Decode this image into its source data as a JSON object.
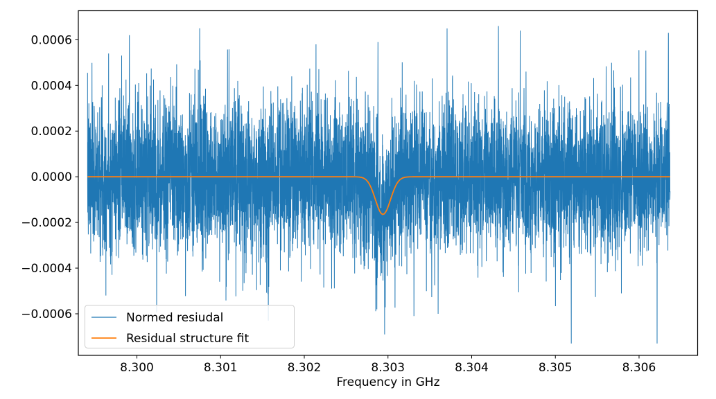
{
  "chart_data": {
    "type": "line",
    "title": "",
    "xlabel": "Frequency in GHz",
    "ylabel": "",
    "grid": false,
    "background": "#ffffff",
    "spine_color": "#000000",
    "legend_position": "lower left",
    "xlim": [
      8.2993,
      8.3067
    ],
    "ylim": [
      -0.000782,
      0.000727
    ],
    "xticks": [
      {
        "v": 8.3,
        "label": "8.300"
      },
      {
        "v": 8.301,
        "label": "8.301"
      },
      {
        "v": 8.302,
        "label": "8.302"
      },
      {
        "v": 8.303,
        "label": "8.303"
      },
      {
        "v": 8.304,
        "label": "8.304"
      },
      {
        "v": 8.305,
        "label": "8.305"
      },
      {
        "v": 8.306,
        "label": "8.306"
      }
    ],
    "yticks": [
      {
        "v": 0.0006,
        "label": "0.0006"
      },
      {
        "v": 0.0004,
        "label": "0.0004"
      },
      {
        "v": 0.0002,
        "label": "0.0002"
      },
      {
        "v": 0.0,
        "label": "0.0000"
      },
      {
        "v": -0.0002,
        "label": "−0.0002"
      },
      {
        "v": -0.0004,
        "label": "−0.0004"
      },
      {
        "v": -0.0006,
        "label": "−0.0006"
      }
    ],
    "series": [
      {
        "name": "Normed resiudal",
        "color": "#1f77b4",
        "kind": "noise",
        "x_start": 8.29941,
        "x_end": 8.30637,
        "n_points": 6000,
        "noise_sigma": 0.000165,
        "clip": 0.00073,
        "seed": 7,
        "feature_spikes": [
          {
            "x": 8.29991,
            "y": 0.00062
          },
          {
            "x": 8.30075,
            "y": 0.00065
          },
          {
            "x": 8.30157,
            "y": -0.00063
          },
          {
            "x": 8.30214,
            "y": 0.00058
          },
          {
            "x": 8.30288,
            "y": 0.00059
          },
          {
            "x": 8.30296,
            "y": -0.00069
          },
          {
            "x": 8.30331,
            "y": -0.00061
          },
          {
            "x": 8.3036,
            "y": -0.0006
          },
          {
            "x": 8.30432,
            "y": 0.00066
          },
          {
            "x": 8.30458,
            "y": 0.00064
          },
          {
            "x": 8.30519,
            "y": -0.00073
          },
          {
            "x": 8.30635,
            "y": 0.00063
          }
        ]
      },
      {
        "name": "Residual structure fit",
        "color": "#ff7f0e",
        "kind": "gaussian_dip",
        "baseline": 0.0,
        "center": 8.30294,
        "depth": 0.000165,
        "sigma": 9e-05
      }
    ]
  }
}
